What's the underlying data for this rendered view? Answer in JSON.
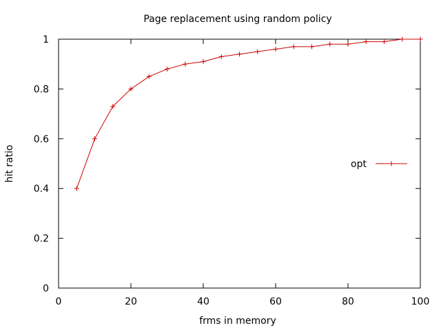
{
  "chart_data": {
    "type": "line",
    "title": "Page replacement using random policy",
    "xlabel": "frms in memory",
    "ylabel": "hit ratio",
    "xlim": [
      0,
      100
    ],
    "ylim": [
      0,
      1
    ],
    "xticks": [
      0,
      20,
      40,
      60,
      80,
      100
    ],
    "yticks": [
      0,
      0.2,
      0.4,
      0.6,
      0.8,
      1
    ],
    "xtick_labels": [
      "0",
      "20",
      "40",
      "60",
      "80",
      "100"
    ],
    "ytick_labels": [
      "0",
      "0.2",
      "0.4",
      "0.6",
      "0.8",
      "1"
    ],
    "grid": false,
    "legend_position": "right",
    "series": [
      {
        "name": "opt",
        "color": "#cc0000",
        "marker": "plus",
        "x": [
          5,
          10,
          15,
          20,
          25,
          30,
          35,
          40,
          45,
          50,
          55,
          60,
          65,
          70,
          75,
          80,
          85,
          90,
          95,
          100
        ],
        "y": [
          0.4,
          0.6,
          0.73,
          0.8,
          0.85,
          0.88,
          0.9,
          0.91,
          0.93,
          0.94,
          0.95,
          0.96,
          0.97,
          0.97,
          0.98,
          0.98,
          0.99,
          0.99,
          1.0,
          1.0
        ]
      }
    ]
  }
}
